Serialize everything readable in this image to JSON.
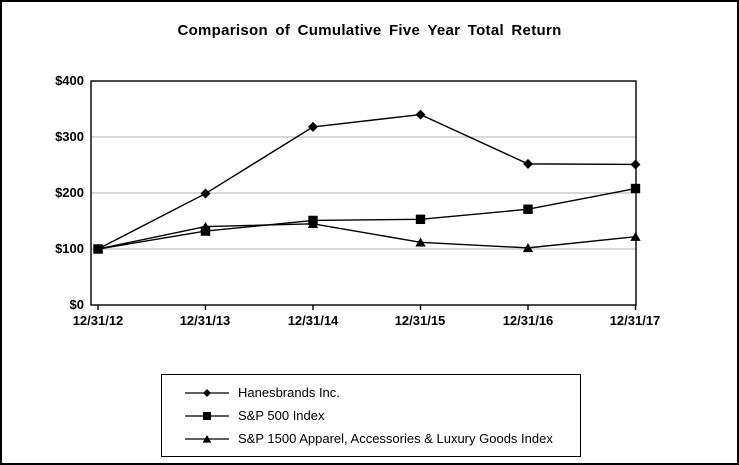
{
  "chart_data": {
    "type": "line",
    "title": "Comparison of Cumulative Five Year Total Return",
    "x": [
      "12/31/12",
      "12/31/13",
      "12/31/14",
      "12/31/15",
      "12/31/16",
      "12/31/17"
    ],
    "series": [
      {
        "name": "Hanesbrands Inc.",
        "marker": "diamond",
        "values": [
          100,
          199,
          318,
          340,
          252,
          251
        ]
      },
      {
        "name": "S&P 500 Index",
        "marker": "square",
        "values": [
          100,
          132,
          151,
          153,
          171,
          208
        ]
      },
      {
        "name": "S&P 1500 Apparel, Accessories & Luxury Goods Index",
        "marker": "triangle",
        "values": [
          100,
          140,
          145,
          112,
          102,
          122
        ]
      }
    ],
    "ylim": [
      0,
      400
    ],
    "yticks": [
      0,
      100,
      200,
      300,
      400
    ],
    "ytick_labels": [
      "$0",
      "$100",
      "$200",
      "$300",
      "$400"
    ],
    "xlabel": "",
    "ylabel": "",
    "grid": "horizontal",
    "legend_position": "bottom",
    "colors": {
      "line": "#000000",
      "grid": "#b0b0b0",
      "text": "#000000",
      "background": "#ffffff",
      "frame": "#000000"
    }
  }
}
